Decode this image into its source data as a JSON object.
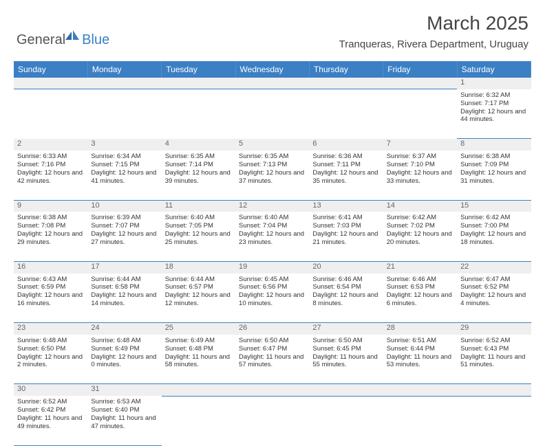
{
  "logo": {
    "part1": "General",
    "part2": "Blue"
  },
  "title": "March 2025",
  "location": "Tranqueras, Rivera Department, Uruguay",
  "colors": {
    "header_bg": "#3b7fc4",
    "header_text": "#ffffff",
    "daynum_bg": "#efefef",
    "cell_text": "#333333",
    "border": "#3b7fc4",
    "logo_gray": "#555555",
    "logo_blue": "#3b7fc4"
  },
  "day_headers": [
    "Sunday",
    "Monday",
    "Tuesday",
    "Wednesday",
    "Thursday",
    "Friday",
    "Saturday"
  ],
  "weeks": [
    [
      null,
      null,
      null,
      null,
      null,
      null,
      {
        "d": "1",
        "sunrise": "6:32 AM",
        "sunset": "7:17 PM",
        "daylight": "12 hours and 44 minutes."
      }
    ],
    [
      {
        "d": "2",
        "sunrise": "6:33 AM",
        "sunset": "7:16 PM",
        "daylight": "12 hours and 42 minutes."
      },
      {
        "d": "3",
        "sunrise": "6:34 AM",
        "sunset": "7:15 PM",
        "daylight": "12 hours and 41 minutes."
      },
      {
        "d": "4",
        "sunrise": "6:35 AM",
        "sunset": "7:14 PM",
        "daylight": "12 hours and 39 minutes."
      },
      {
        "d": "5",
        "sunrise": "6:35 AM",
        "sunset": "7:13 PM",
        "daylight": "12 hours and 37 minutes."
      },
      {
        "d": "6",
        "sunrise": "6:36 AM",
        "sunset": "7:11 PM",
        "daylight": "12 hours and 35 minutes."
      },
      {
        "d": "7",
        "sunrise": "6:37 AM",
        "sunset": "7:10 PM",
        "daylight": "12 hours and 33 minutes."
      },
      {
        "d": "8",
        "sunrise": "6:38 AM",
        "sunset": "7:09 PM",
        "daylight": "12 hours and 31 minutes."
      }
    ],
    [
      {
        "d": "9",
        "sunrise": "6:38 AM",
        "sunset": "7:08 PM",
        "daylight": "12 hours and 29 minutes."
      },
      {
        "d": "10",
        "sunrise": "6:39 AM",
        "sunset": "7:07 PM",
        "daylight": "12 hours and 27 minutes."
      },
      {
        "d": "11",
        "sunrise": "6:40 AM",
        "sunset": "7:05 PM",
        "daylight": "12 hours and 25 minutes."
      },
      {
        "d": "12",
        "sunrise": "6:40 AM",
        "sunset": "7:04 PM",
        "daylight": "12 hours and 23 minutes."
      },
      {
        "d": "13",
        "sunrise": "6:41 AM",
        "sunset": "7:03 PM",
        "daylight": "12 hours and 21 minutes."
      },
      {
        "d": "14",
        "sunrise": "6:42 AM",
        "sunset": "7:02 PM",
        "daylight": "12 hours and 20 minutes."
      },
      {
        "d": "15",
        "sunrise": "6:42 AM",
        "sunset": "7:00 PM",
        "daylight": "12 hours and 18 minutes."
      }
    ],
    [
      {
        "d": "16",
        "sunrise": "6:43 AM",
        "sunset": "6:59 PM",
        "daylight": "12 hours and 16 minutes."
      },
      {
        "d": "17",
        "sunrise": "6:44 AM",
        "sunset": "6:58 PM",
        "daylight": "12 hours and 14 minutes."
      },
      {
        "d": "18",
        "sunrise": "6:44 AM",
        "sunset": "6:57 PM",
        "daylight": "12 hours and 12 minutes."
      },
      {
        "d": "19",
        "sunrise": "6:45 AM",
        "sunset": "6:56 PM",
        "daylight": "12 hours and 10 minutes."
      },
      {
        "d": "20",
        "sunrise": "6:46 AM",
        "sunset": "6:54 PM",
        "daylight": "12 hours and 8 minutes."
      },
      {
        "d": "21",
        "sunrise": "6:46 AM",
        "sunset": "6:53 PM",
        "daylight": "12 hours and 6 minutes."
      },
      {
        "d": "22",
        "sunrise": "6:47 AM",
        "sunset": "6:52 PM",
        "daylight": "12 hours and 4 minutes."
      }
    ],
    [
      {
        "d": "23",
        "sunrise": "6:48 AM",
        "sunset": "6:50 PM",
        "daylight": "12 hours and 2 minutes."
      },
      {
        "d": "24",
        "sunrise": "6:48 AM",
        "sunset": "6:49 PM",
        "daylight": "12 hours and 0 minutes."
      },
      {
        "d": "25",
        "sunrise": "6:49 AM",
        "sunset": "6:48 PM",
        "daylight": "11 hours and 58 minutes."
      },
      {
        "d": "26",
        "sunrise": "6:50 AM",
        "sunset": "6:47 PM",
        "daylight": "11 hours and 57 minutes."
      },
      {
        "d": "27",
        "sunrise": "6:50 AM",
        "sunset": "6:45 PM",
        "daylight": "11 hours and 55 minutes."
      },
      {
        "d": "28",
        "sunrise": "6:51 AM",
        "sunset": "6:44 PM",
        "daylight": "11 hours and 53 minutes."
      },
      {
        "d": "29",
        "sunrise": "6:52 AM",
        "sunset": "6:43 PM",
        "daylight": "11 hours and 51 minutes."
      }
    ],
    [
      {
        "d": "30",
        "sunrise": "6:52 AM",
        "sunset": "6:42 PM",
        "daylight": "11 hours and 49 minutes."
      },
      {
        "d": "31",
        "sunrise": "6:53 AM",
        "sunset": "6:40 PM",
        "daylight": "11 hours and 47 minutes."
      },
      null,
      null,
      null,
      null,
      null
    ]
  ],
  "labels": {
    "sunrise": "Sunrise:",
    "sunset": "Sunset:",
    "daylight": "Daylight:"
  }
}
